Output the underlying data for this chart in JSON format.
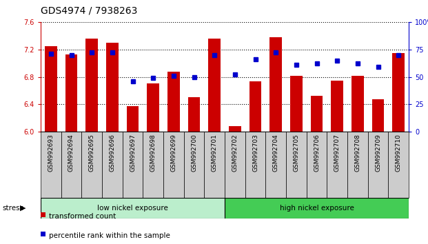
{
  "title": "GDS4974 / 7938263",
  "samples": [
    "GSM992693",
    "GSM992694",
    "GSM992695",
    "GSM992696",
    "GSM992697",
    "GSM992698",
    "GSM992699",
    "GSM992700",
    "GSM992701",
    "GSM992702",
    "GSM992703",
    "GSM992704",
    "GSM992705",
    "GSM992706",
    "GSM992707",
    "GSM992708",
    "GSM992709",
    "GSM992710"
  ],
  "red_values": [
    7.25,
    7.13,
    7.36,
    7.3,
    6.37,
    6.7,
    6.88,
    6.5,
    7.36,
    6.08,
    6.73,
    7.38,
    6.82,
    6.52,
    6.74,
    6.82,
    6.47,
    7.15
  ],
  "blue_values": [
    71,
    70,
    72,
    72,
    46,
    49,
    51,
    50,
    70,
    52,
    66,
    72,
    61,
    62,
    65,
    62,
    59,
    70
  ],
  "ymin": 6.0,
  "ymax": 7.6,
  "yticks_left": [
    6.0,
    6.4,
    6.8,
    7.2,
    7.6
  ],
  "yticks_right": [
    0,
    25,
    50,
    75,
    100
  ],
  "bar_color": "#cc0000",
  "dot_color": "#0000cc",
  "group1_label": "low nickel exposure",
  "group2_label": "high nickel exposure",
  "group1_count": 9,
  "group2_count": 9,
  "stress_label": "stress",
  "legend1": "transformed count",
  "legend2": "percentile rank within the sample",
  "group1_color": "#bbeecc",
  "group2_color": "#44cc55",
  "left_axis_color": "#cc0000",
  "right_axis_color": "#0000cc",
  "tick_label_bg": "#cccccc",
  "bar_width": 0.6
}
